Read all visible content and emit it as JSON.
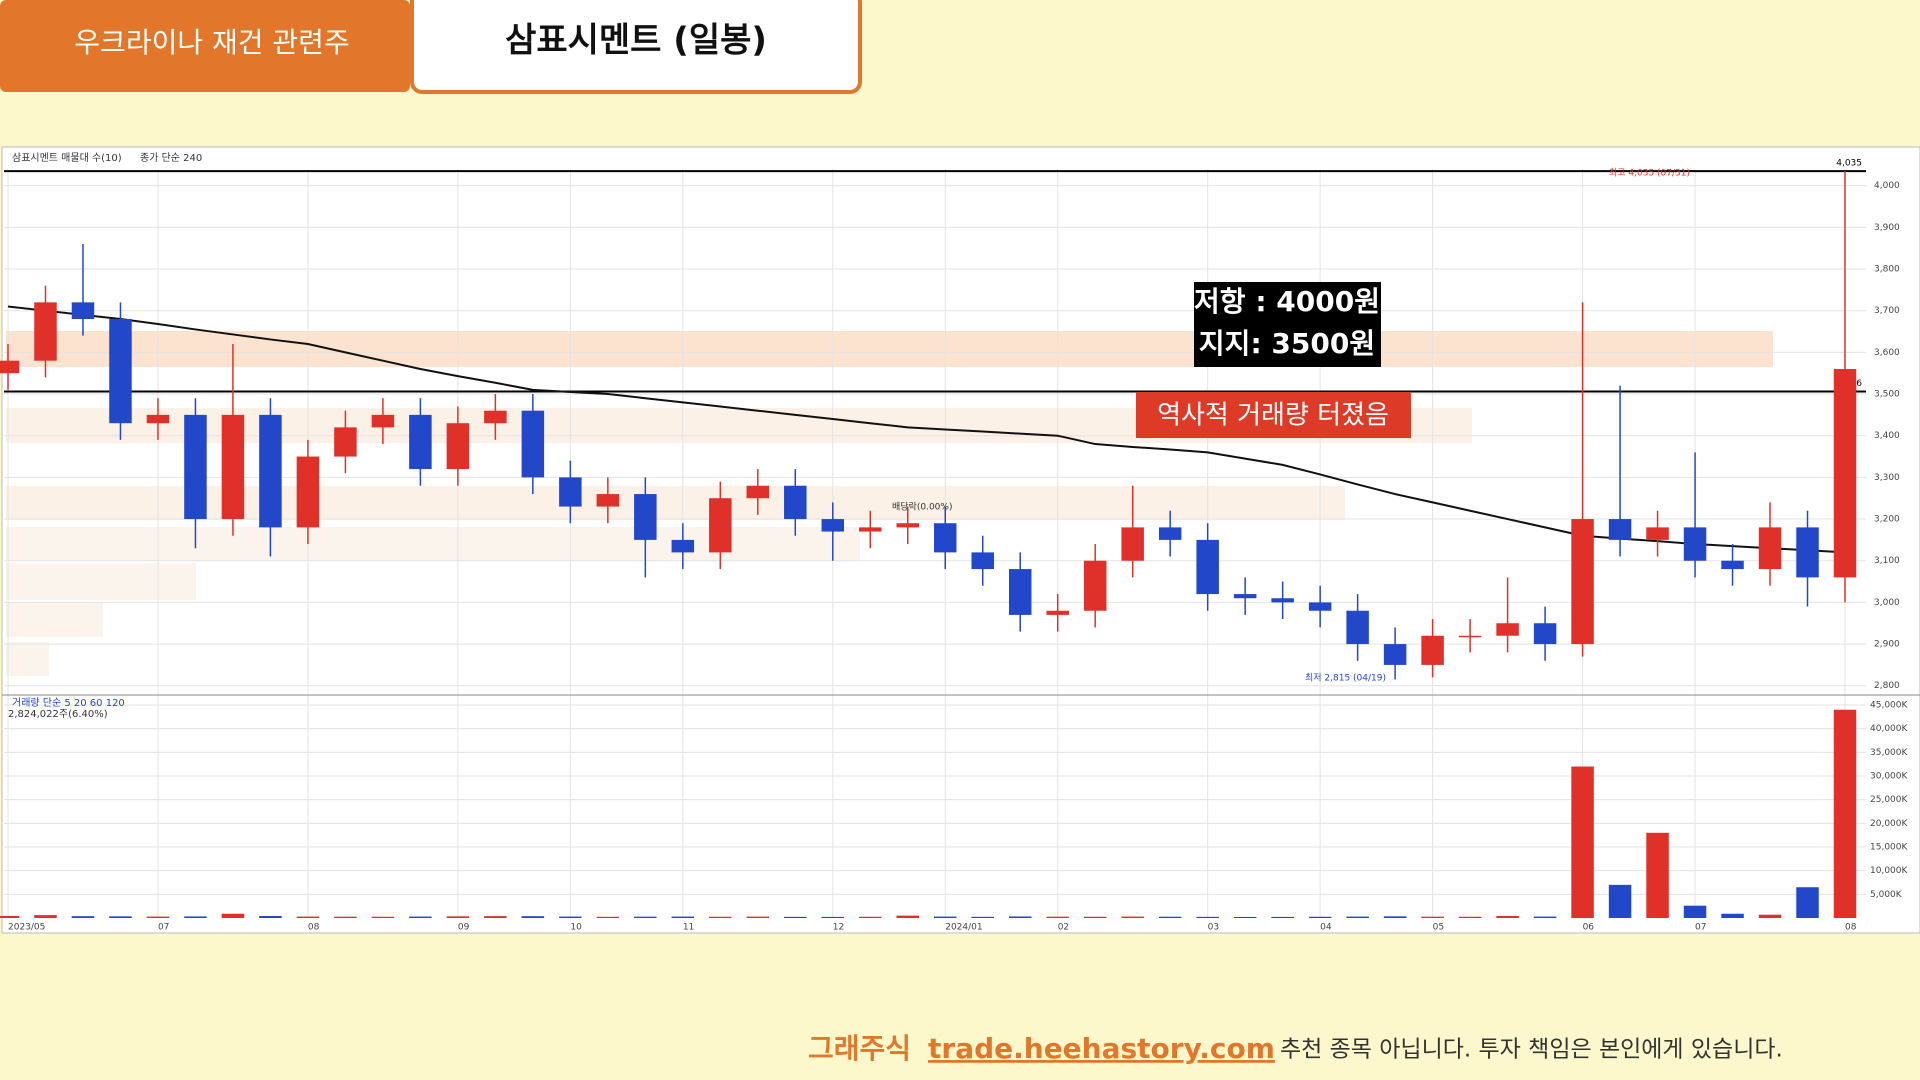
{
  "header": {
    "tag": "우크라이나 재건 관련주",
    "title": "삼표시멘트  (일봉)"
  },
  "footer": {
    "brand": "그래주식",
    "url": "trade.heehastory.com",
    "disclaimer": "추천 종목 아닙니다. 투자 책임은 본인에게 있습니다."
  },
  "annotations": {
    "levels_box": [
      "저항 : 4000원",
      "지지: 3500원"
    ],
    "volume_note": "역사적 거래량 터졌음",
    "high_note": "최고 4,035 (07/31)",
    "low_note": "최저 2,815 (04/19)",
    "dividend_note": "배당락(0.00%)"
  },
  "chart_data": [
    {
      "type": "candlestick",
      "title": "삼표시멘트 매물대 수(10)",
      "categories": [
        "2023/05",
        null,
        null,
        null,
        "07",
        null,
        null,
        null,
        "08",
        null,
        null,
        null,
        "09",
        null,
        null,
        "10",
        null,
        null,
        "11",
        null,
        null,
        null,
        "12",
        null,
        null,
        "2024/01",
        null,
        null,
        "02",
        null,
        null,
        null,
        "03",
        null,
        null,
        "04",
        null,
        null,
        "05",
        null,
        null,
        null,
        "06",
        null,
        null,
        "07",
        null,
        null,
        null,
        "08"
      ],
      "open": [
        3550,
        3580,
        3720,
        3680,
        3430,
        3450,
        3200,
        3450,
        3180,
        3350,
        3420,
        3450,
        3320,
        3430,
        3460,
        3300,
        3230,
        3260,
        3150,
        3120,
        3250,
        3280,
        3200,
        3170,
        3180,
        3190,
        3120,
        3080,
        2970,
        2980,
        3100,
        3180,
        3150,
        3020,
        3010,
        3000,
        2980,
        2900,
        2850,
        2920,
        2920,
        2950,
        2900,
        3200,
        3150,
        3180,
        3100,
        3080,
        3180,
        3060
      ],
      "high": [
        3620,
        3760,
        3860,
        3720,
        3490,
        3490,
        3620,
        3490,
        3390,
        3460,
        3490,
        3490,
        3470,
        3500,
        3500,
        3340,
        3300,
        3300,
        3190,
        3290,
        3320,
        3320,
        3240,
        3220,
        3230,
        3230,
        3160,
        3120,
        3020,
        3140,
        3280,
        3220,
        3190,
        3060,
        3050,
        3040,
        3020,
        2940,
        2960,
        2960,
        3060,
        2990,
        3720,
        3520,
        3220,
        3360,
        3140,
        3240,
        3220,
        4035
      ],
      "low": [
        3510,
        3540,
        3640,
        3390,
        3390,
        3130,
        3160,
        3110,
        3140,
        3310,
        3380,
        3280,
        3280,
        3390,
        3260,
        3190,
        3190,
        3060,
        3080,
        3080,
        3210,
        3160,
        3100,
        3130,
        3140,
        3080,
        3040,
        2930,
        2930,
        2940,
        3060,
        3110,
        2980,
        2970,
        2960,
        2940,
        2860,
        2815,
        2820,
        2880,
        2880,
        2860,
        2870,
        3110,
        3110,
        3060,
        3040,
        3040,
        2990,
        3000
      ],
      "close": [
        3580,
        3720,
        3680,
        3430,
        3450,
        3200,
        3450,
        3180,
        3350,
        3420,
        3450,
        3320,
        3430,
        3460,
        3300,
        3230,
        3260,
        3150,
        3120,
        3250,
        3280,
        3200,
        3170,
        3180,
        3190,
        3120,
        3080,
        2970,
        2980,
        3100,
        3180,
        3150,
        3020,
        3010,
        3000,
        2980,
        2900,
        2850,
        2920,
        2920,
        2950,
        2900,
        3200,
        3150,
        3180,
        3100,
        3080,
        3180,
        3060,
        3560
      ],
      "up_color": "#e0302a",
      "down_color": "#2347c9",
      "series": [
        {
          "name": "종가 단순 240",
          "color": "#111111",
          "values": [
            3710,
            3700,
            3690,
            3680,
            3668,
            3655,
            3643,
            3631,
            3620,
            3600,
            3580,
            3560,
            3543,
            3527,
            3510,
            3505,
            3500,
            3490,
            3480,
            3470,
            3460,
            3450,
            3440,
            3430,
            3420,
            3415,
            3410,
            3405,
            3400,
            3380,
            3373,
            3367,
            3360,
            3345,
            3330,
            3307,
            3283,
            3260,
            3240,
            3220,
            3200,
            3180,
            3160,
            3153,
            3147,
            3140,
            3135,
            3130,
            3125,
            3120
          ]
        }
      ],
      "levels": [
        {
          "value": 4035,
          "label": "4,035"
        },
        {
          "value": 3506,
          "label": "3,506"
        }
      ],
      "ylim": [
        2785,
        4040
      ],
      "yticks": [
        {
          "value": 2800,
          "label": "2,800"
        },
        {
          "value": 2900,
          "label": "2,900"
        },
        {
          "value": 3000,
          "label": "3,000"
        },
        {
          "value": 3100,
          "label": "3,100"
        },
        {
          "value": 3200,
          "label": "3,200"
        },
        {
          "value": 3300,
          "label": "3,300"
        },
        {
          "value": 3400,
          "label": "3,400"
        },
        {
          "value": 3500,
          "label": "3,500"
        },
        {
          "value": 3600,
          "label": "3,600"
        },
        {
          "value": 3700,
          "label": "3,700"
        },
        {
          "value": 3800,
          "label": "3,800"
        },
        {
          "value": 3900,
          "label": "3,900"
        },
        {
          "value": 4000,
          "label": "4,000"
        }
      ],
      "grid": true
    },
    {
      "type": "bar",
      "title": "거래량 단순 5 20 60 120",
      "subtitle": "2,824,022주(6.40%)",
      "values": [
        420,
        610,
        380,
        350,
        300,
        330,
        900,
        420,
        300,
        280,
        260,
        300,
        350,
        400,
        380,
        300,
        250,
        280,
        300,
        260,
        290,
        240,
        230,
        260,
        500,
        300,
        250,
        320,
        280,
        260,
        300,
        270,
        240,
        220,
        230,
        260,
        300,
        350,
        280,
        260,
        420,
        300,
        32000,
        7000,
        18000,
        2600,
        900,
        700,
        6500,
        44000
      ],
      "ylim": [
        0,
        45000
      ],
      "yticks": [
        {
          "value": 5000,
          "label": "5,000K"
        },
        {
          "value": 10000,
          "label": "10,000K"
        },
        {
          "value": 15000,
          "label": "15,000K"
        },
        {
          "value": 20000,
          "label": "20,000K"
        },
        {
          "value": 25000,
          "label": "25,000K"
        },
        {
          "value": 30000,
          "label": "30,000K"
        },
        {
          "value": 35000,
          "label": "35,000K"
        },
        {
          "value": 40000,
          "label": "40,000K"
        },
        {
          "value": 45000,
          "label": "45,000K"
        }
      ],
      "grid": true
    }
  ]
}
